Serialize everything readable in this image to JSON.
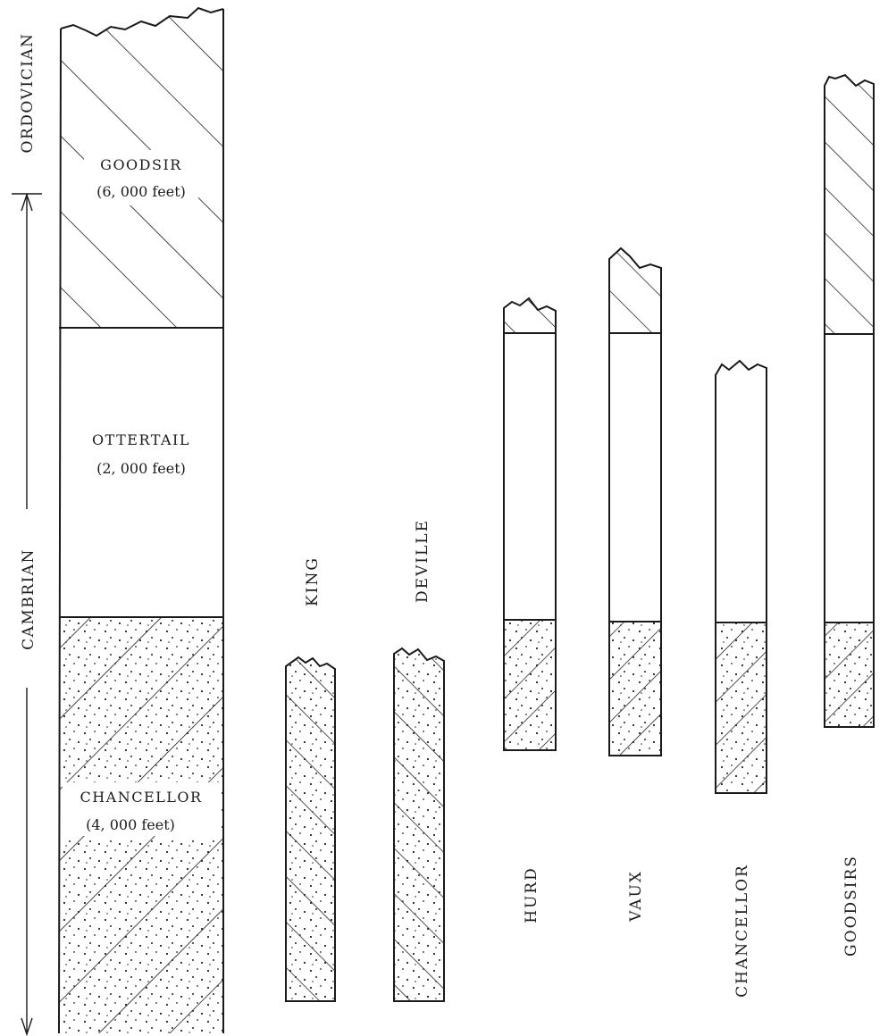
{
  "periods": {
    "upper": "ORDOVICIAN",
    "lower": "CAMBRIAN"
  },
  "main_column": {
    "units": [
      {
        "name": "GOODSIR",
        "thickness": "(6, 000 feet)",
        "pattern": "hatch"
      },
      {
        "name": "OTTERTAIL",
        "thickness": "(2, 000 feet)",
        "pattern": "blank"
      },
      {
        "name": "CHANCELLOR",
        "thickness": "(4, 000 feet)",
        "pattern": "dotted-hatch"
      }
    ]
  },
  "sections": [
    {
      "name": "KING",
      "label_position": "top",
      "units": [
        "dotted-hatch"
      ]
    },
    {
      "name": "DEVILLE",
      "label_position": "top",
      "units": [
        "dotted-hatch"
      ]
    },
    {
      "name": "HURD",
      "label_position": "bottom",
      "units": [
        "hatch",
        "blank",
        "dotted-hatch"
      ]
    },
    {
      "name": "VAUX",
      "label_position": "bottom",
      "units": [
        "hatch",
        "blank",
        "dotted-hatch"
      ]
    },
    {
      "name": "CHANCELLOR",
      "label_position": "bottom",
      "units": [
        "blank",
        "dotted-hatch"
      ]
    },
    {
      "name": "GOODSIRS",
      "label_position": "bottom",
      "units": [
        "hatch",
        "blank",
        "dotted-hatch"
      ]
    }
  ]
}
